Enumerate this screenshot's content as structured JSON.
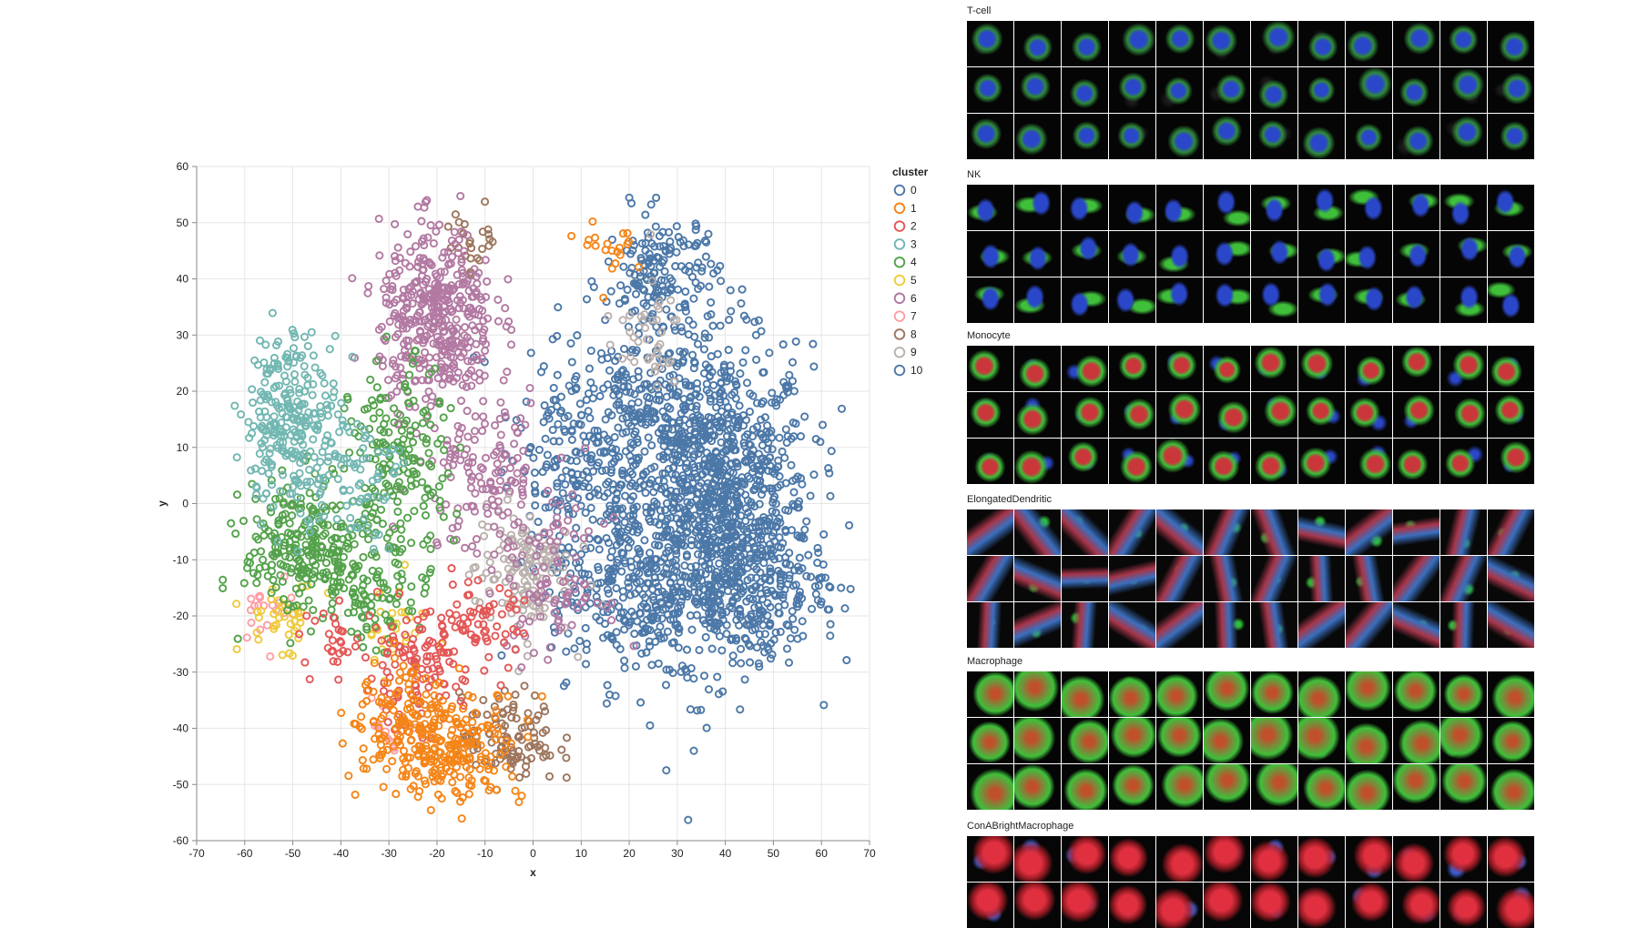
{
  "chart_data": {
    "type": "scatter",
    "title": "",
    "xlabel": "x",
    "ylabel": "y",
    "xlim": [
      -70,
      70
    ],
    "ylim": [
      -60,
      60
    ],
    "x_ticks": [
      -70,
      -60,
      -50,
      -40,
      -30,
      -20,
      -10,
      0,
      10,
      20,
      30,
      40,
      50,
      60,
      70
    ],
    "y_ticks": [
      -60,
      -50,
      -40,
      -30,
      -20,
      -10,
      0,
      10,
      20,
      30,
      40,
      50,
      60
    ],
    "grid": true,
    "marker": "open-circle",
    "legend": {
      "title": "cluster",
      "position": "right"
    },
    "series": [
      {
        "name": "0",
        "color": "#4c78a8",
        "regions": [
          {
            "cx": 38,
            "cy": 0,
            "sx": 10,
            "sy": 14,
            "n": 1100
          },
          {
            "cx": 27,
            "cy": 40,
            "sx": 6,
            "sy": 6,
            "n": 180
          },
          {
            "cx": 20,
            "cy": 15,
            "sx": 10,
            "sy": 8,
            "n": 250
          },
          {
            "cx": 20,
            "cy": -15,
            "sx": 8,
            "sy": 8,
            "n": 250
          },
          {
            "cx": 8,
            "cy": 5,
            "sx": 6,
            "sy": 10,
            "n": 140
          },
          {
            "cx": 45,
            "cy": -15,
            "sx": 8,
            "sy": 6,
            "n": 200
          }
        ]
      },
      {
        "name": "1",
        "color": "#f58518",
        "regions": [
          {
            "cx": -18,
            "cy": -43,
            "sx": 8,
            "sy": 5,
            "n": 260
          },
          {
            "cx": -28,
            "cy": -38,
            "sx": 5,
            "sy": 5,
            "n": 70
          },
          {
            "cx": 17,
            "cy": 45,
            "sx": 3,
            "sy": 3,
            "n": 20
          }
        ]
      },
      {
        "name": "2",
        "color": "#e45756",
        "regions": [
          {
            "cx": -25,
            "cy": -30,
            "sx": 5,
            "sy": 5,
            "n": 110
          },
          {
            "cx": -12,
            "cy": -22,
            "sx": 5,
            "sy": 4,
            "n": 70
          },
          {
            "cx": -40,
            "cy": -24,
            "sx": 4,
            "sy": 3,
            "n": 30
          }
        ]
      },
      {
        "name": "3",
        "color": "#72b7b2",
        "regions": [
          {
            "cx": -50,
            "cy": 15,
            "sx": 5,
            "sy": 8,
            "n": 260
          },
          {
            "cx": -38,
            "cy": 5,
            "sx": 5,
            "sy": 6,
            "n": 70
          }
        ]
      },
      {
        "name": "4",
        "color": "#54a24b",
        "regions": [
          {
            "cx": -48,
            "cy": -8,
            "sx": 6,
            "sy": 6,
            "n": 240
          },
          {
            "cx": -28,
            "cy": 5,
            "sx": 5,
            "sy": 10,
            "n": 200
          },
          {
            "cx": -35,
            "cy": -15,
            "sx": 5,
            "sy": 5,
            "n": 90
          }
        ]
      },
      {
        "name": "5",
        "color": "#eeca3b",
        "regions": [
          {
            "cx": -52,
            "cy": -20,
            "sx": 4,
            "sy": 3,
            "n": 40
          },
          {
            "cx": -30,
            "cy": -22,
            "sx": 4,
            "sy": 4,
            "n": 25
          }
        ]
      },
      {
        "name": "6",
        "color": "#b279a2",
        "regions": [
          {
            "cx": -20,
            "cy": 33,
            "sx": 6,
            "sy": 8,
            "n": 420
          },
          {
            "cx": -10,
            "cy": 5,
            "sx": 7,
            "sy": 8,
            "n": 150
          },
          {
            "cx": 5,
            "cy": -15,
            "sx": 5,
            "sy": 6,
            "n": 80
          }
        ]
      },
      {
        "name": "7",
        "color": "#ff9da6",
        "regions": [
          {
            "cx": -55,
            "cy": -18,
            "sx": 3,
            "sy": 3,
            "n": 20
          },
          {
            "cx": -30,
            "cy": -40,
            "sx": 3,
            "sy": 3,
            "n": 12
          }
        ]
      },
      {
        "name": "8",
        "color": "#9d755d",
        "regions": [
          {
            "cx": -5,
            "cy": -42,
            "sx": 5,
            "sy": 4,
            "n": 110
          },
          {
            "cx": -12,
            "cy": 47,
            "sx": 3,
            "sy": 3,
            "n": 25
          }
        ]
      },
      {
        "name": "9",
        "color": "#bab0ac",
        "regions": [
          {
            "cx": -2,
            "cy": -12,
            "sx": 5,
            "sy": 6,
            "n": 140
          },
          {
            "cx": 23,
            "cy": 30,
            "sx": 4,
            "sy": 5,
            "n": 40
          }
        ]
      },
      {
        "name": "10",
        "color": "#4c78a8",
        "regions": []
      }
    ]
  },
  "gallery": {
    "sections": [
      {
        "title": "T-cell",
        "top": 0,
        "rows": 3,
        "cols": 12,
        "palette": [
          "#2a47c9",
          "#2f8a3a",
          "#1a1a1a"
        ],
        "style": "round"
      },
      {
        "title": "NK",
        "top": 0,
        "rows": 3,
        "cols": 12,
        "palette": [
          "#2a47c9",
          "#3fbf3a",
          "#1a1a1a"
        ],
        "style": "spiky"
      },
      {
        "title": "Monocyte",
        "top": 0,
        "rows": 3,
        "cols": 12,
        "palette": [
          "#c9373a",
          "#3fbf3a",
          "#2a47c9"
        ],
        "style": "round"
      },
      {
        "title": "ElongatedDendritic",
        "top": 0,
        "rows": 3,
        "cols": 12,
        "palette": [
          "#a8364a",
          "#3a6fbf",
          "#2fbf3a"
        ],
        "style": "elongated"
      },
      {
        "title": "Macrophage",
        "top": 0,
        "rows": 3,
        "cols": 12,
        "palette": [
          "#7a8a3a",
          "#3fbf3a",
          "#c0502a"
        ],
        "style": "large"
      },
      {
        "title": "ConABrightMacrophage",
        "top": 0,
        "rows": 2,
        "cols": 12,
        "palette": [
          "#e03040",
          "#3a5fcf",
          "#3fbf3a"
        ],
        "style": "bright"
      }
    ]
  }
}
